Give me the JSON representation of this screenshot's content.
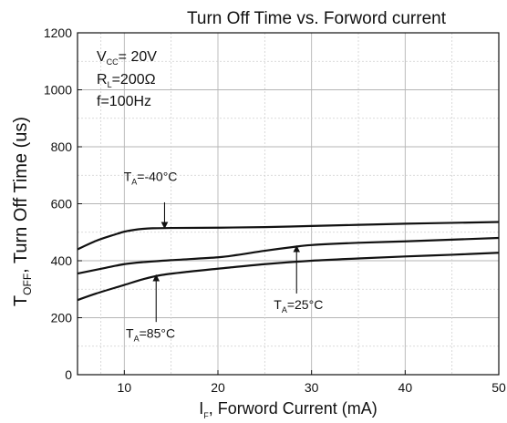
{
  "chart_data": {
    "type": "line",
    "title": "Turn Off Time vs. Forword current",
    "xlabel": {
      "main": "I",
      "sub": "F",
      "rest": ", Forword Current (mA)"
    },
    "ylabel": {
      "main": "T",
      "sub": "OFF",
      "rest": ", Turn Off Time (us)"
    },
    "xlim": [
      5,
      50
    ],
    "ylim": [
      0,
      1200
    ],
    "x_ticks": [
      10,
      20,
      30,
      40,
      50
    ],
    "y_ticks": [
      0,
      200,
      400,
      600,
      800,
      1000,
      1200
    ],
    "grid": true,
    "conditions": [
      {
        "main": "V",
        "sub": "CC",
        "rest": "= 20V"
      },
      {
        "main": "R",
        "sub": "L",
        "rest": "=200Ω"
      },
      {
        "main": "f=100Hz",
        "sub": "",
        "rest": ""
      }
    ],
    "series": [
      {
        "label": {
          "main": "T",
          "sub": "A",
          "rest": "=-40°C"
        },
        "x": [
          5,
          7,
          9,
          10,
          11,
          12,
          13,
          15,
          20,
          25,
          30,
          35,
          40,
          45,
          50
        ],
        "y": [
          440,
          470,
          492,
          502,
          508,
          512,
          514,
          515,
          516,
          518,
          522,
          526,
          530,
          533,
          536
        ]
      },
      {
        "label": {
          "main": "T",
          "sub": "A",
          "rest": "=25°C"
        },
        "x": [
          5,
          8,
          10,
          12,
          15,
          20,
          22,
          25,
          28,
          30,
          35,
          40,
          45,
          50
        ],
        "y": [
          355,
          375,
          388,
          395,
          402,
          412,
          420,
          435,
          448,
          455,
          463,
          468,
          474,
          480
        ]
      },
      {
        "label": {
          "main": "T",
          "sub": "A",
          "rest": "=85°C"
        },
        "x": [
          5,
          7,
          10,
          12,
          14,
          17,
          20,
          25,
          30,
          35,
          40,
          45,
          50
        ],
        "y": [
          262,
          285,
          315,
          335,
          350,
          362,
          372,
          388,
          400,
          408,
          415,
          421,
          428
        ]
      }
    ],
    "annotations": [
      {
        "series": 0,
        "label_at": [
          12.8,
          680
        ],
        "arrow_from": [
          14.3,
          605
        ],
        "arrow_to": [
          14.3,
          514
        ]
      },
      {
        "series": 1,
        "label_at": [
          28.6,
          230
        ],
        "arrow_from": [
          28.4,
          285
        ],
        "arrow_to": [
          28.4,
          452
        ]
      },
      {
        "series": 2,
        "label_at": [
          12.8,
          130
        ],
        "arrow_from": [
          13.4,
          185
        ],
        "arrow_to": [
          13.4,
          350
        ]
      }
    ]
  }
}
